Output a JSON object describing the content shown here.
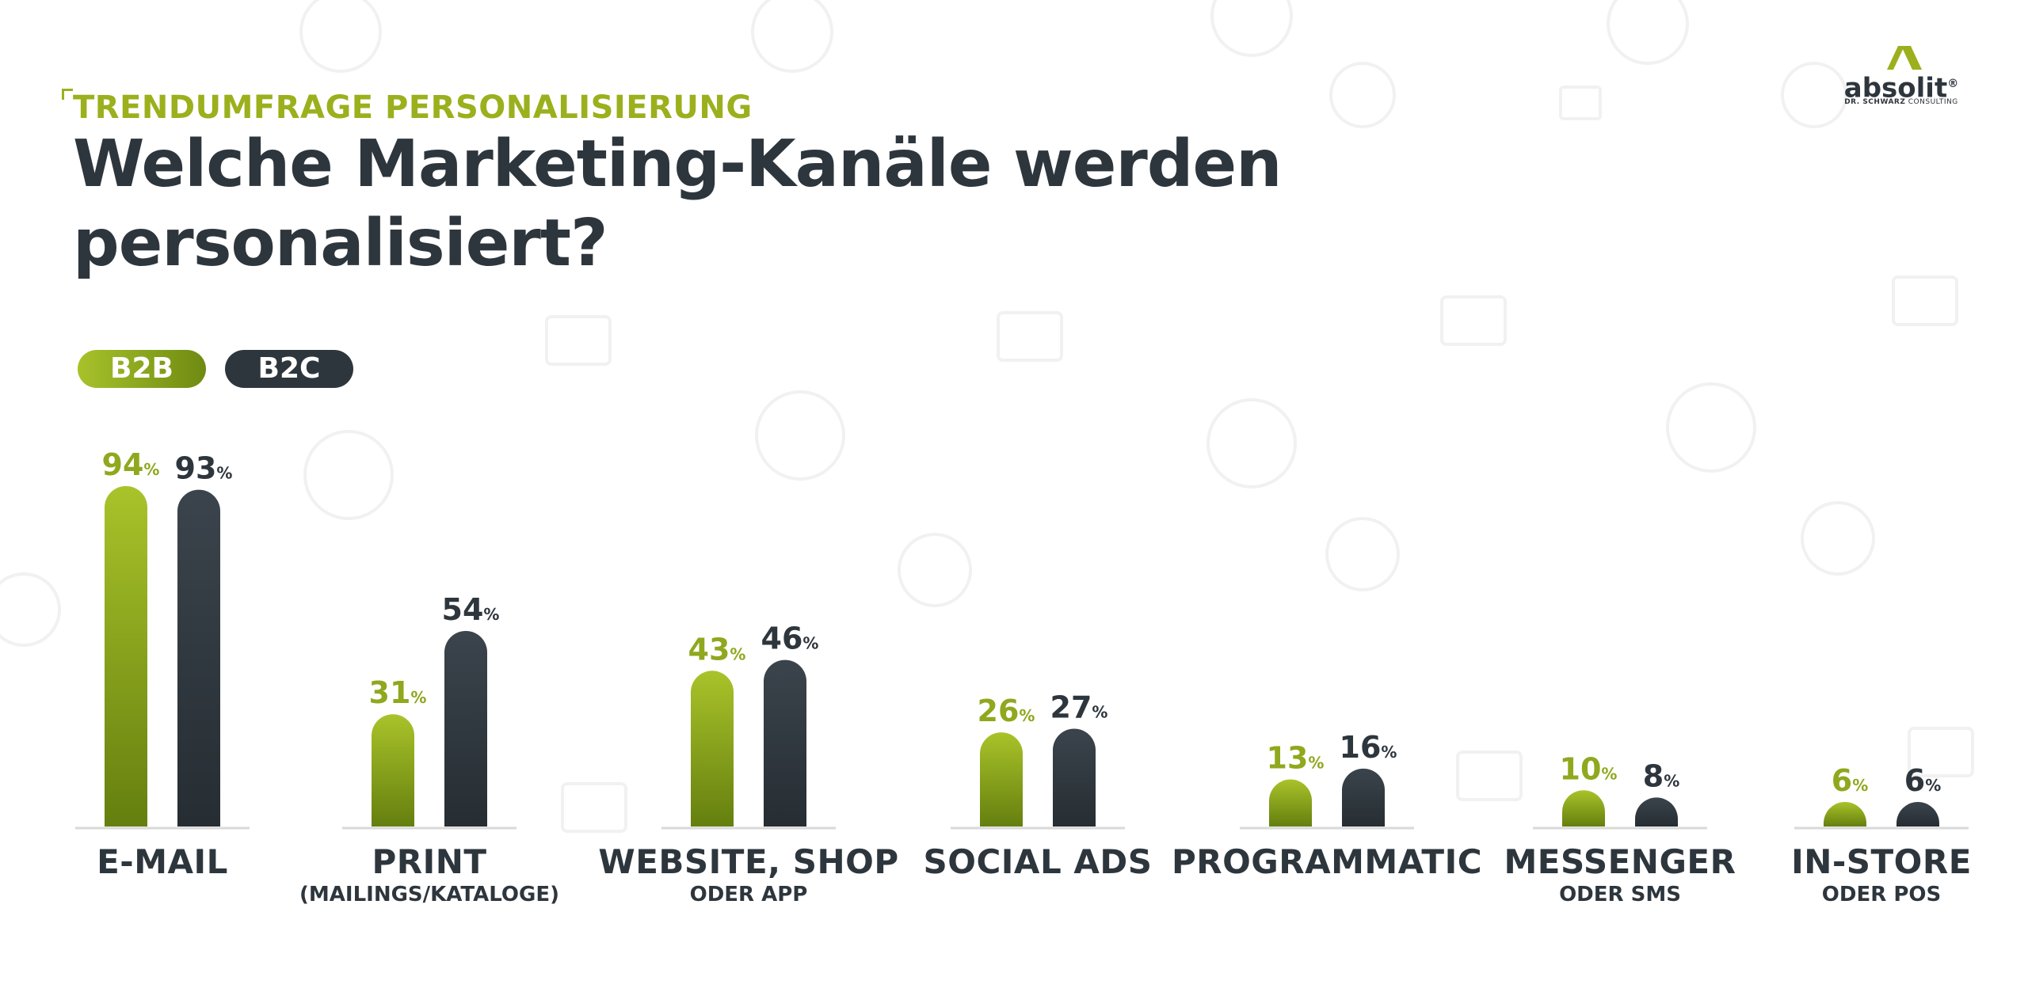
{
  "kicker": "TRENDUMFRAGE PERSONALISIERUNG",
  "title_line1": "Welche Marketing-Kanäle werden",
  "title_line2": "personalisiert?",
  "legend": {
    "b2b": "B2B",
    "b2c": "B2C"
  },
  "logo": {
    "word": "absolit",
    "mark": "®",
    "sub_bold": "DR. SCHWARZ",
    "sub_rest": " CONSULTING"
  },
  "colors": {
    "b2b": "#8fa81e",
    "b2c": "#2e363d",
    "text": "#2e363d",
    "axis": "#d9d9d9"
  },
  "chart_data": {
    "type": "bar",
    "title": "Welche Marketing-Kanäle werden personalisiert?",
    "unit": "%",
    "ylim": [
      0,
      100
    ],
    "grid": false,
    "legend_position": "top-left",
    "categories": [
      {
        "name": "E-Mail",
        "label": "E-MAIL",
        "sub": ""
      },
      {
        "name": "Print",
        "label": "PRINT",
        "sub": "(MAILINGS/KATALOGE)"
      },
      {
        "name": "Website, Shop oder App",
        "label": "WEBSITE, SHOP",
        "sub": "ODER APP"
      },
      {
        "name": "Social Ads",
        "label": "SOCIAL ADS",
        "sub": ""
      },
      {
        "name": "Programmatic",
        "label": "PROGRAMMATIC",
        "sub": ""
      },
      {
        "name": "Messenger oder SMS",
        "label": "MESSENGER",
        "sub": "ODER SMS"
      },
      {
        "name": "In-Store oder POS",
        "label": "IN-STORE",
        "sub": "ODER POS"
      }
    ],
    "series": [
      {
        "name": "B2B",
        "values": [
          94,
          31,
          43,
          26,
          13,
          10,
          6
        ]
      },
      {
        "name": "B2C",
        "values": [
          93,
          54,
          46,
          27,
          16,
          8,
          6
        ]
      }
    ]
  }
}
